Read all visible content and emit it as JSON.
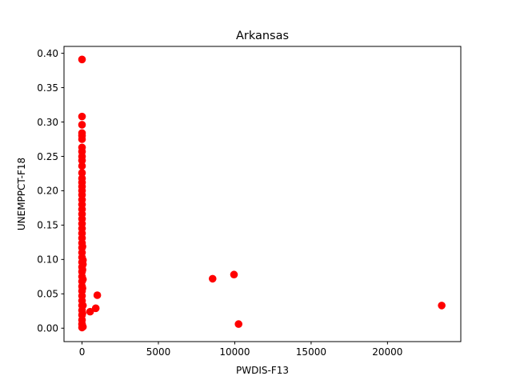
{
  "chart_data": {
    "type": "scatter",
    "title": "Arkansas",
    "xlabel": "PWDIS-F13",
    "ylabel": "UNEMPPCT-F18",
    "xlim": [
      -1180,
      24800
    ],
    "ylim": [
      -0.0195,
      0.41
    ],
    "xticks": [
      0,
      5000,
      10000,
      15000,
      20000
    ],
    "xtick_labels": [
      "0",
      "5000",
      "10000",
      "15000",
      "20000"
    ],
    "yticks": [
      0.0,
      0.05,
      0.1,
      0.15,
      0.2,
      0.25,
      0.3,
      0.35,
      0.4
    ],
    "ytick_labels": [
      "0.00",
      "0.05",
      "0.10",
      "0.15",
      "0.20",
      "0.25",
      "0.30",
      "0.35",
      "0.40"
    ],
    "grid": false,
    "marker_color": "#ff0000",
    "series": [
      {
        "points": [
          {
            "x": 0,
            "y": 0.391
          },
          {
            "x": 0,
            "y": 0.308
          },
          {
            "x": 0,
            "y": 0.296
          },
          {
            "x": 0,
            "y": 0.284
          },
          {
            "x": 0,
            "y": 0.28
          },
          {
            "x": 0,
            "y": 0.275
          },
          {
            "x": 0,
            "y": 0.263
          },
          {
            "x": 0,
            "y": 0.257
          },
          {
            "x": 0,
            "y": 0.25
          },
          {
            "x": 0,
            "y": 0.244
          },
          {
            "x": 0,
            "y": 0.236
          },
          {
            "x": 0,
            "y": 0.226
          },
          {
            "x": 0,
            "y": 0.218
          },
          {
            "x": 0,
            "y": 0.212
          },
          {
            "x": 0,
            "y": 0.206
          },
          {
            "x": 0,
            "y": 0.2
          },
          {
            "x": 0,
            "y": 0.194
          },
          {
            "x": 0,
            "y": 0.187
          },
          {
            "x": 0,
            "y": 0.18
          },
          {
            "x": 0,
            "y": 0.173
          },
          {
            "x": 0,
            "y": 0.166
          },
          {
            "x": 0,
            "y": 0.159
          },
          {
            "x": 0,
            "y": 0.152
          },
          {
            "x": 0,
            "y": 0.145
          },
          {
            "x": 0,
            "y": 0.138
          },
          {
            "x": 0,
            "y": 0.131
          },
          {
            "x": 0,
            "y": 0.124
          },
          {
            "x": 0,
            "y": 0.117
          },
          {
            "x": 0,
            "y": 0.11
          },
          {
            "x": 0,
            "y": 0.103
          },
          {
            "x": 0,
            "y": 0.096
          },
          {
            "x": 0,
            "y": 0.089
          },
          {
            "x": 0,
            "y": 0.082
          },
          {
            "x": 0,
            "y": 0.075
          },
          {
            "x": 0,
            "y": 0.068
          },
          {
            "x": 0,
            "y": 0.061
          },
          {
            "x": 0,
            "y": 0.054
          },
          {
            "x": 0,
            "y": 0.047
          },
          {
            "x": 0,
            "y": 0.04
          },
          {
            "x": 0,
            "y": 0.033
          },
          {
            "x": 0,
            "y": 0.026
          },
          {
            "x": 0,
            "y": 0.019
          },
          {
            "x": 0,
            "y": 0.012
          },
          {
            "x": 0,
            "y": 0.006
          },
          {
            "x": 0,
            "y": 0.001
          },
          {
            "x": 60,
            "y": 0.099
          },
          {
            "x": 60,
            "y": 0.093
          },
          {
            "x": 60,
            "y": 0.071
          },
          {
            "x": 60,
            "y": 0.033
          },
          {
            "x": 60,
            "y": 0.002
          },
          {
            "x": 30,
            "y": 0.119
          },
          {
            "x": 30,
            "y": 0.085
          },
          {
            "x": 30,
            "y": 0.058
          },
          {
            "x": 30,
            "y": 0.022
          },
          {
            "x": 530,
            "y": 0.024
          },
          {
            "x": 900,
            "y": 0.029
          },
          {
            "x": 1000,
            "y": 0.048
          },
          {
            "x": 8550,
            "y": 0.072
          },
          {
            "x": 9950,
            "y": 0.078
          },
          {
            "x": 10250,
            "y": 0.006
          },
          {
            "x": 23550,
            "y": 0.033
          }
        ]
      }
    ]
  }
}
